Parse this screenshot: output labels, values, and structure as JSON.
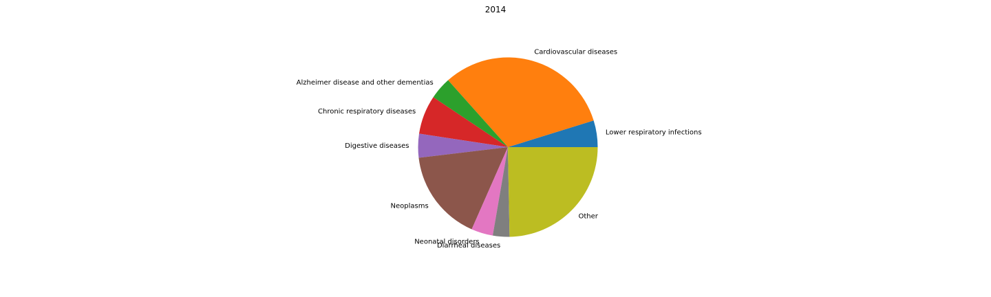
{
  "chart_data": {
    "type": "pie",
    "title": "2014",
    "start_angle_deg": 0,
    "direction": "counterclockwise",
    "slices": [
      {
        "label": "Lower respiratory infections",
        "value": 4.8,
        "color": "#1f77b4"
      },
      {
        "label": "Cardiovascular diseases",
        "value": 31.8,
        "color": "#ff7f0e"
      },
      {
        "label": "Alzheimer disease and other dementias",
        "value": 4.0,
        "color": "#2ca02c"
      },
      {
        "label": "Chronic respiratory diseases",
        "value": 7.0,
        "color": "#d62728"
      },
      {
        "label": "Digestive diseases",
        "value": 4.3,
        "color": "#9467bd"
      },
      {
        "label": "Neoplasms",
        "value": 16.5,
        "color": "#8c564b"
      },
      {
        "label": "Neonatal disorders",
        "value": 3.9,
        "color": "#e377c2"
      },
      {
        "label": "Diarrheal diseases",
        "value": 3.0,
        "color": "#7f7f7f"
      },
      {
        "label": "Other",
        "value": 24.7,
        "color": "#bcbd22"
      }
    ]
  }
}
